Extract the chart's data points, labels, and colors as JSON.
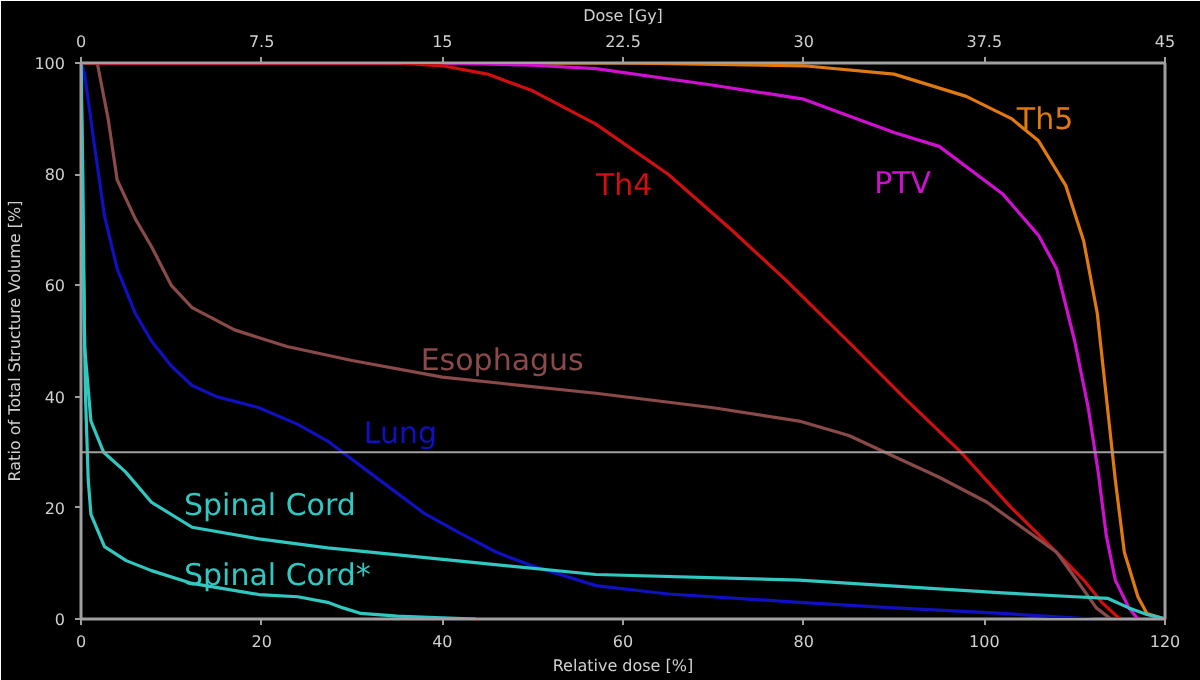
{
  "chart_data": {
    "type": "line",
    "xlabel": "Relative dose [%]",
    "ylabel": "Ratio of Total Structure Volume [%]",
    "x2label": "Dose [Gy]",
    "xlim": [
      0,
      120
    ],
    "xticks": [
      0,
      20,
      40,
      60,
      80,
      100,
      120
    ],
    "x2lim": [
      0,
      45
    ],
    "x2ticks": [
      0,
      7.5,
      15,
      22.5,
      30,
      37.5,
      45
    ],
    "ylim": [
      0,
      100
    ],
    "yticks": [
      0,
      20,
      40,
      60,
      80,
      100
    ],
    "grid": false,
    "marker": "none",
    "line_style": "solid",
    "ref_lines": [
      {
        "axis": "y",
        "value": 30,
        "color": "#a0a0a0"
      }
    ],
    "series": [
      {
        "name": "Th5",
        "color": "#e07a10",
        "x": [
          0,
          60,
          80,
          90,
          98,
          103,
          106,
          109,
          111,
          112.5,
          113.5,
          114.5,
          115.5,
          117,
          118,
          120
        ],
        "values": [
          100,
          100,
          99.5,
          98,
          94,
          90,
          86,
          78,
          68,
          55,
          40,
          25,
          12,
          4,
          1,
          0
        ]
      },
      {
        "name": "PTV",
        "color": "#d010d0",
        "x": [
          0,
          40,
          50,
          57,
          70,
          80,
          90,
          95,
          102,
          106,
          108,
          110,
          111.5,
          112.6,
          113.5,
          114.5,
          116,
          117
        ],
        "values": [
          100,
          100,
          99.6,
          99,
          96,
          93.5,
          87.5,
          85,
          76.5,
          69,
          63,
          50,
          38,
          26.5,
          15,
          7,
          2,
          0
        ]
      },
      {
        "name": "Th4",
        "color": "#d01010",
        "x": [
          0,
          35,
          40,
          45,
          50,
          57,
          65,
          72,
          78,
          85.5,
          91,
          97.4,
          103,
          108,
          111,
          113,
          115
        ],
        "values": [
          100,
          100,
          99.5,
          98,
          95,
          89,
          80,
          70,
          61,
          49,
          40,
          30,
          20,
          12,
          7,
          3,
          0
        ]
      },
      {
        "name": "Esophagus",
        "color": "#8a4a4a",
        "x": [
          0,
          1.8,
          3,
          4,
          6,
          7.8,
          10,
          12.3,
          17,
          22.8,
          30,
          40,
          57,
          70,
          79.5,
          85,
          89,
          95,
          100.3,
          105,
          108,
          110,
          112.4,
          114
        ],
        "values": [
          100,
          100,
          90,
          79,
          72,
          67,
          60,
          56,
          52,
          49,
          46.5,
          43.5,
          40.6,
          38,
          35.6,
          33,
          30,
          25.5,
          21,
          15.5,
          12,
          7.5,
          2,
          0
        ]
      },
      {
        "name": "Lung",
        "color": "#1010c0",
        "x": [
          0,
          0.4,
          1.5,
          2.6,
          4,
          6,
          7.8,
          10,
          12.3,
          15,
          19.7,
          24,
          27.3,
          31,
          34.7,
          38,
          42,
          46,
          49.7,
          57,
          65,
          79.5,
          90,
          102,
          112
        ],
        "values": [
          100,
          98,
          85,
          72.5,
          63,
          55,
          50,
          45.5,
          42,
          40,
          38,
          35,
          32,
          27.5,
          23,
          19,
          15.4,
          12,
          9.7,
          6,
          4.5,
          3,
          2,
          1,
          0
        ]
      },
      {
        "name": "Spinal Cord",
        "color": "#30c8c0",
        "x": [
          0,
          0.2,
          0.4,
          1.1,
          2.5,
          4.9,
          7.8,
          12.3,
          19.7,
          27.3,
          42,
          57,
          79.5,
          102,
          110,
          113.7,
          116,
          118,
          120
        ],
        "values": [
          100,
          80,
          49,
          35.6,
          30,
          26.5,
          21,
          16.5,
          14.4,
          12.8,
          10.4,
          8,
          7,
          4.7,
          4,
          3.7,
          2,
          0.8,
          0
        ]
      },
      {
        "name": "Spinal Cord*",
        "color": "#30c8c0",
        "x": [
          0,
          0.2,
          0.5,
          0.8,
          1.1,
          2.6,
          5,
          7.8,
          12.3,
          19.7,
          24,
          27.3,
          29,
          31,
          35,
          38.5,
          43.7
        ],
        "values": [
          100,
          70,
          40,
          25,
          18.8,
          13,
          10.5,
          8.7,
          6.4,
          4.4,
          4,
          3,
          2,
          1,
          0.5,
          0.3,
          0
        ]
      }
    ]
  }
}
